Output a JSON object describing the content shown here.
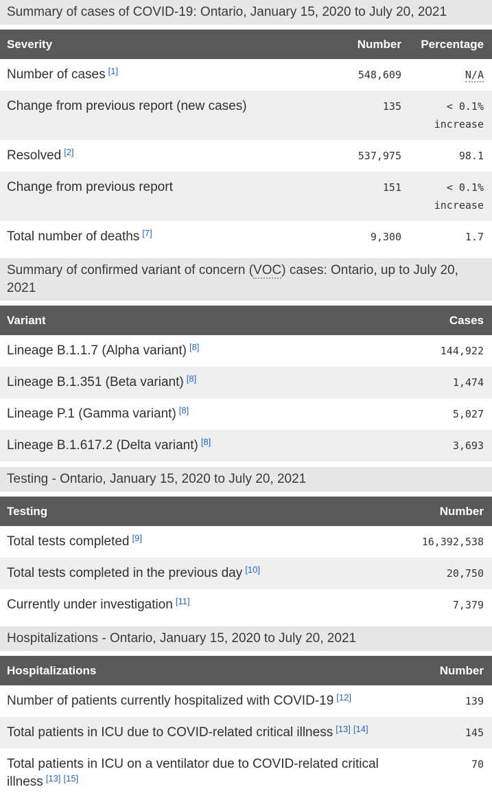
{
  "colors": {
    "caption-bg": "#e7e7e7",
    "caption-text": "#3a3a3a",
    "header-bg": "#595959",
    "header-text": "#ffffff",
    "stripe-bg": "#efefef",
    "body-text": "#303030",
    "link": "#2b62c4",
    "abbr-dot": "#999999"
  },
  "tables": [
    {
      "caption": [
        "Summary of cases of COVID-19: Ontario, January 15, 2020 to July 20, 2021"
      ],
      "columns": [
        "Severity",
        "Number",
        "Percentage"
      ],
      "rows": [
        {
          "label": "Number of cases",
          "footnotes": [
            "[1]"
          ],
          "values": [
            "548,609",
            {
              "text": "N/A",
              "abbr": true
            }
          ]
        },
        {
          "label": "Change from previous report (new cases)",
          "footnotes": [],
          "values": [
            "135",
            "< 0.1% increase"
          ]
        },
        {
          "label": "Resolved",
          "footnotes": [
            "[2]"
          ],
          "values": [
            "537,975",
            "98.1"
          ]
        },
        {
          "label": "Change from previous report",
          "footnotes": [],
          "values": [
            "151",
            "< 0.1% increase"
          ]
        },
        {
          "label": "Total number of deaths",
          "footnotes": [
            "[7]"
          ],
          "values": [
            "9,300",
            "1.7"
          ]
        }
      ]
    },
    {
      "caption": [
        "Summary of confirmed variant of concern (",
        {
          "text": "VOC",
          "abbr": true
        },
        ") cases: Ontario, up to July 20, 2021"
      ],
      "columns": [
        "Variant",
        "Cases"
      ],
      "rows": [
        {
          "label": "Lineage B.1.1.7 (Alpha variant)",
          "footnotes": [
            "[8]"
          ],
          "values": [
            "144,922"
          ]
        },
        {
          "label": "Lineage B.1.351 (Beta variant)",
          "footnotes": [
            "[8]"
          ],
          "values": [
            "1,474"
          ]
        },
        {
          "label": "Lineage P.1 (Gamma variant)",
          "footnotes": [
            "[8]"
          ],
          "values": [
            "5,027"
          ]
        },
        {
          "label": "Lineage B.1.617.2 (Delta variant)",
          "footnotes": [
            "[8]"
          ],
          "values": [
            "3,693"
          ]
        }
      ]
    },
    {
      "caption": [
        "Testing - Ontario, January 15, 2020 to July 20, 2021"
      ],
      "columns": [
        "Testing",
        "Number"
      ],
      "rows": [
        {
          "label": "Total tests completed",
          "footnotes": [
            "[9]"
          ],
          "values": [
            "16,392,538"
          ]
        },
        {
          "label": "Total tests completed in the previous day",
          "footnotes": [
            "[10]"
          ],
          "values": [
            "20,750"
          ]
        },
        {
          "label": "Currently under investigation",
          "footnotes": [
            "[11]"
          ],
          "values": [
            "7,379"
          ]
        }
      ]
    },
    {
      "caption": [
        "Hospitalizations - Ontario, January 15, 2020 to July 20, 2021"
      ],
      "columns": [
        "Hospitalizations",
        "Number"
      ],
      "rows": [
        {
          "label": "Number of patients currently hospitalized with COVID-19",
          "footnotes": [
            "[12]"
          ],
          "values": [
            "139"
          ]
        },
        {
          "label": "Total patients in ICU due to COVID-related critical illness",
          "footnotes": [
            "[13]",
            "[14]"
          ],
          "values": [
            "145"
          ]
        },
        {
          "label": "Total patients in ICU on a ventilator due to COVID-related critical illness",
          "footnotes": [
            "[13]",
            "[15]"
          ],
          "values": [
            "70"
          ]
        }
      ]
    }
  ]
}
